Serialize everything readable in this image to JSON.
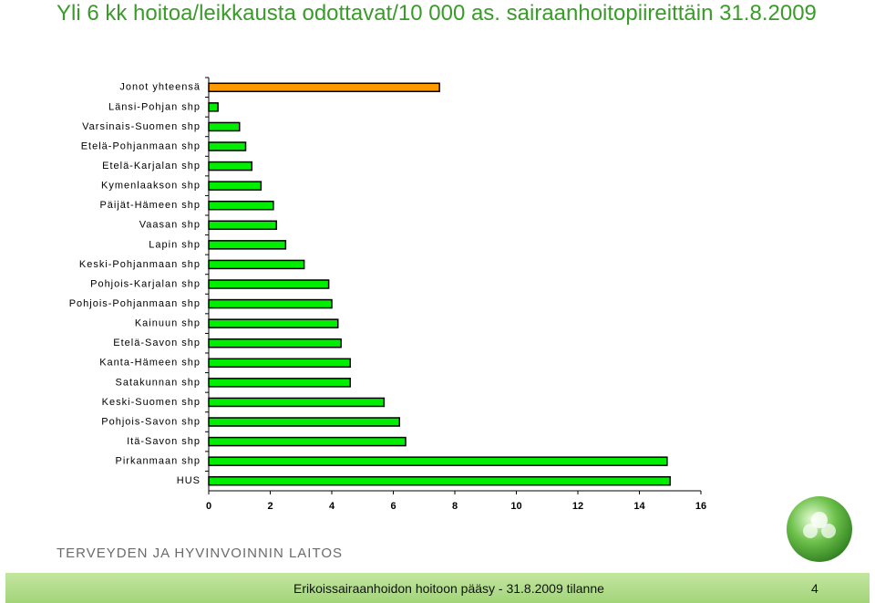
{
  "chart_data": {
    "type": "bar",
    "orientation": "horizontal",
    "title": "Yli 6 kk hoitoa/leikkausta odottavat/10 000 as. sairaanhoitopiireittäin 31.8.2009",
    "categories": [
      "Jonot yhteensä",
      "Länsi-Pohjan shp",
      "Varsinais-Suomen shp",
      "Etelä-Pohjanmaan shp",
      "Etelä-Karjalan shp",
      "Kymenlaakson shp",
      "Päijät-Hämeen shp",
      "Vaasan shp",
      "Lapin shp",
      "Keski-Pohjanmaan shp",
      "Pohjois-Karjalan shp",
      "Pohjois-Pohjanmaan shp",
      "Kainuun shp",
      "Etelä-Savon shp",
      "Kanta-Hämeen shp",
      "Satakunnan shp",
      "Keski-Suomen shp",
      "Pohjois-Savon shp",
      "Itä-Savon shp",
      "Pirkanmaan shp",
      "HUS"
    ],
    "values": [
      7.5,
      0.3,
      1.0,
      1.2,
      1.4,
      1.7,
      2.1,
      2.2,
      2.5,
      3.1,
      3.9,
      4.0,
      4.2,
      4.3,
      4.6,
      4.6,
      5.7,
      6.2,
      6.4,
      14.9,
      15.0
    ],
    "colors": [
      "#ff9900",
      "#00ee00",
      "#00ee00",
      "#00ee00",
      "#00ee00",
      "#00ee00",
      "#00ee00",
      "#00ee00",
      "#00ee00",
      "#00ee00",
      "#00ee00",
      "#00ee00",
      "#00ee00",
      "#00ee00",
      "#00ee00",
      "#00ee00",
      "#00ee00",
      "#00ee00",
      "#00ee00",
      "#00ee00",
      "#00ee00"
    ],
    "xlim": [
      0,
      16
    ],
    "xticks": [
      0,
      2,
      4,
      6,
      8,
      10,
      12,
      14,
      16
    ],
    "grid": false
  },
  "footer": {
    "organization": "TERVEYDEN JA HYVINVOINNIN LAITOS",
    "caption": "Erikoissairaanhoidon hoitoon pääsy - 31.8.2009 tilanne",
    "page": 4
  }
}
